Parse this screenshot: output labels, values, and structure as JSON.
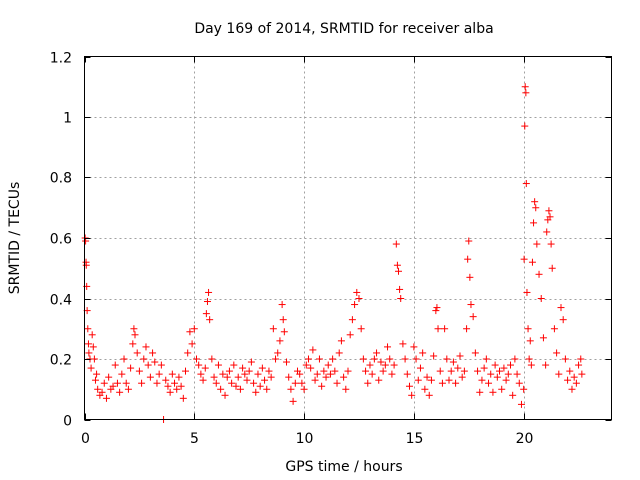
{
  "chart_data": {
    "type": "scatter",
    "title": "Day 169 of 2014, SRMTID for receiver alba",
    "xlabel": "GPS time / hours",
    "ylabel": "SRMTID / TECUs",
    "xlim": [
      0,
      24
    ],
    "ylim": [
      0,
      1.2
    ],
    "xticks": [
      0,
      5,
      10,
      15,
      20
    ],
    "xtick_labels": [
      "0",
      "5",
      "10",
      "15",
      "20"
    ],
    "yticks": [
      0,
      0.2,
      0.4,
      0.6,
      0.8,
      1.0,
      1.2
    ],
    "ytick_labels": [
      "0",
      "0.2",
      "0.4",
      "0.6",
      "0.8",
      "1",
      "1.2"
    ],
    "grid": true,
    "marker": "+",
    "color": "#ff0000",
    "series": [
      {
        "name": "SRMTID",
        "points": [
          [
            0.03,
            0.6
          ],
          [
            0.05,
            0.59
          ],
          [
            0.07,
            0.52
          ],
          [
            0.08,
            0.51
          ],
          [
            0.1,
            0.44
          ],
          [
            0.12,
            0.36
          ],
          [
            0.15,
            0.3
          ],
          [
            0.18,
            0.25
          ],
          [
            0.2,
            0.22
          ],
          [
            0.25,
            0.2
          ],
          [
            0.3,
            0.17
          ],
          [
            0.35,
            0.28
          ],
          [
            0.4,
            0.24
          ],
          [
            0.45,
            0.2
          ],
          [
            0.5,
            0.13
          ],
          [
            0.55,
            0.15
          ],
          [
            0.6,
            0.1
          ],
          [
            0.7,
            0.08
          ],
          [
            0.8,
            0.09
          ],
          [
            0.9,
            0.12
          ],
          [
            1.0,
            0.07
          ],
          [
            1.1,
            0.14
          ],
          [
            1.2,
            0.1
          ],
          [
            1.3,
            0.11
          ],
          [
            1.4,
            0.18
          ],
          [
            1.5,
            0.12
          ],
          [
            1.6,
            0.09
          ],
          [
            1.7,
            0.15
          ],
          [
            1.8,
            0.2
          ],
          [
            1.9,
            0.12
          ],
          [
            2.0,
            0.1
          ],
          [
            2.1,
            0.17
          ],
          [
            2.2,
            0.25
          ],
          [
            2.25,
            0.3
          ],
          [
            2.3,
            0.28
          ],
          [
            2.4,
            0.22
          ],
          [
            2.5,
            0.16
          ],
          [
            2.6,
            0.12
          ],
          [
            2.7,
            0.2
          ],
          [
            2.8,
            0.24
          ],
          [
            2.9,
            0.18
          ],
          [
            3.0,
            0.14
          ],
          [
            3.1,
            0.22
          ],
          [
            3.2,
            0.19
          ],
          [
            3.3,
            0.12
          ],
          [
            3.4,
            0.15
          ],
          [
            3.5,
            0.18
          ],
          [
            3.6,
            0.0
          ],
          [
            3.7,
            0.13
          ],
          [
            3.8,
            0.11
          ],
          [
            3.9,
            0.09
          ],
          [
            4.0,
            0.15
          ],
          [
            4.1,
            0.12
          ],
          [
            4.2,
            0.1
          ],
          [
            4.3,
            0.14
          ],
          [
            4.4,
            0.11
          ],
          [
            4.5,
            0.07
          ],
          [
            4.6,
            0.16
          ],
          [
            4.7,
            0.22
          ],
          [
            4.8,
            0.29
          ],
          [
            4.9,
            0.25
          ],
          [
            5.0,
            0.3
          ],
          [
            5.1,
            0.2
          ],
          [
            5.2,
            0.18
          ],
          [
            5.3,
            0.15
          ],
          [
            5.4,
            0.13
          ],
          [
            5.5,
            0.17
          ],
          [
            5.55,
            0.35
          ],
          [
            5.6,
            0.39
          ],
          [
            5.65,
            0.42
          ],
          [
            5.7,
            0.33
          ],
          [
            5.8,
            0.2
          ],
          [
            5.9,
            0.14
          ],
          [
            6.0,
            0.12
          ],
          [
            6.1,
            0.18
          ],
          [
            6.2,
            0.1
          ],
          [
            6.3,
            0.15
          ],
          [
            6.4,
            0.08
          ],
          [
            6.5,
            0.14
          ],
          [
            6.6,
            0.16
          ],
          [
            6.7,
            0.12
          ],
          [
            6.8,
            0.18
          ],
          [
            6.9,
            0.11
          ],
          [
            7.0,
            0.14
          ],
          [
            7.1,
            0.1
          ],
          [
            7.2,
            0.17
          ],
          [
            7.3,
            0.15
          ],
          [
            7.4,
            0.13
          ],
          [
            7.5,
            0.16
          ],
          [
            7.6,
            0.19
          ],
          [
            7.7,
            0.12
          ],
          [
            7.8,
            0.09
          ],
          [
            7.9,
            0.15
          ],
          [
            8.0,
            0.11
          ],
          [
            8.1,
            0.17
          ],
          [
            8.2,
            0.13
          ],
          [
            8.3,
            0.1
          ],
          [
            8.4,
            0.16
          ],
          [
            8.5,
            0.14
          ],
          [
            8.6,
            0.3
          ],
          [
            8.7,
            0.2
          ],
          [
            8.8,
            0.22
          ],
          [
            8.9,
            0.26
          ],
          [
            9.0,
            0.38
          ],
          [
            9.05,
            0.33
          ],
          [
            9.1,
            0.29
          ],
          [
            9.2,
            0.19
          ],
          [
            9.3,
            0.14
          ],
          [
            9.4,
            0.1
          ],
          [
            9.5,
            0.06
          ],
          [
            9.6,
            0.12
          ],
          [
            9.7,
            0.16
          ],
          [
            9.8,
            0.15
          ],
          [
            9.9,
            0.12
          ],
          [
            10.0,
            0.1
          ],
          [
            10.1,
            0.18
          ],
          [
            10.2,
            0.2
          ],
          [
            10.3,
            0.17
          ],
          [
            10.4,
            0.23
          ],
          [
            10.5,
            0.13
          ],
          [
            10.6,
            0.15
          ],
          [
            10.7,
            0.2
          ],
          [
            10.8,
            0.11
          ],
          [
            10.9,
            0.16
          ],
          [
            11.0,
            0.14
          ],
          [
            11.1,
            0.18
          ],
          [
            11.2,
            0.15
          ],
          [
            11.3,
            0.2
          ],
          [
            11.4,
            0.16
          ],
          [
            11.5,
            0.12
          ],
          [
            11.6,
            0.22
          ],
          [
            11.7,
            0.26
          ],
          [
            11.8,
            0.14
          ],
          [
            11.9,
            0.1
          ],
          [
            12.0,
            0.16
          ],
          [
            12.1,
            0.28
          ],
          [
            12.2,
            0.33
          ],
          [
            12.3,
            0.38
          ],
          [
            12.4,
            0.42
          ],
          [
            12.5,
            0.4
          ],
          [
            12.6,
            0.3
          ],
          [
            12.7,
            0.2
          ],
          [
            12.8,
            0.16
          ],
          [
            12.9,
            0.12
          ],
          [
            13.0,
            0.18
          ],
          [
            13.1,
            0.15
          ],
          [
            13.2,
            0.2
          ],
          [
            13.3,
            0.22
          ],
          [
            13.4,
            0.13
          ],
          [
            13.5,
            0.19
          ],
          [
            13.6,
            0.16
          ],
          [
            13.7,
            0.18
          ],
          [
            13.8,
            0.24
          ],
          [
            13.9,
            0.2
          ],
          [
            14.0,
            0.15
          ],
          [
            14.1,
            0.18
          ],
          [
            14.2,
            0.58
          ],
          [
            14.25,
            0.51
          ],
          [
            14.3,
            0.49
          ],
          [
            14.35,
            0.43
          ],
          [
            14.4,
            0.4
          ],
          [
            14.5,
            0.25
          ],
          [
            14.6,
            0.2
          ],
          [
            14.7,
            0.15
          ],
          [
            14.8,
            0.11
          ],
          [
            14.9,
            0.08
          ],
          [
            15.0,
            0.24
          ],
          [
            15.1,
            0.2
          ],
          [
            15.2,
            0.13
          ],
          [
            15.3,
            0.17
          ],
          [
            15.4,
            0.22
          ],
          [
            15.5,
            0.1
          ],
          [
            15.6,
            0.14
          ],
          [
            15.7,
            0.08
          ],
          [
            15.8,
            0.13
          ],
          [
            15.9,
            0.21
          ],
          [
            16.0,
            0.36
          ],
          [
            16.05,
            0.37
          ],
          [
            16.1,
            0.3
          ],
          [
            16.2,
            0.16
          ],
          [
            16.3,
            0.12
          ],
          [
            16.4,
            0.3
          ],
          [
            16.5,
            0.2
          ],
          [
            16.6,
            0.13
          ],
          [
            16.7,
            0.16
          ],
          [
            16.8,
            0.19
          ],
          [
            16.9,
            0.12
          ],
          [
            17.0,
            0.17
          ],
          [
            17.1,
            0.21
          ],
          [
            17.2,
            0.14
          ],
          [
            17.3,
            0.16
          ],
          [
            17.4,
            0.3
          ],
          [
            17.45,
            0.53
          ],
          [
            17.5,
            0.59
          ],
          [
            17.55,
            0.47
          ],
          [
            17.6,
            0.38
          ],
          [
            17.7,
            0.34
          ],
          [
            17.8,
            0.22
          ],
          [
            17.9,
            0.16
          ],
          [
            18.0,
            0.09
          ],
          [
            18.1,
            0.13
          ],
          [
            18.2,
            0.17
          ],
          [
            18.3,
            0.2
          ],
          [
            18.4,
            0.12
          ],
          [
            18.5,
            0.15
          ],
          [
            18.6,
            0.09
          ],
          [
            18.7,
            0.18
          ],
          [
            18.8,
            0.14
          ],
          [
            18.9,
            0.16
          ],
          [
            19.0,
            0.1
          ],
          [
            19.1,
            0.17
          ],
          [
            19.2,
            0.13
          ],
          [
            19.3,
            0.15
          ],
          [
            19.4,
            0.18
          ],
          [
            19.5,
            0.08
          ],
          [
            19.6,
            0.2
          ],
          [
            19.7,
            0.15
          ],
          [
            19.8,
            0.12
          ],
          [
            19.9,
            0.05
          ],
          [
            20.0,
            0.1
          ],
          [
            20.02,
            0.53
          ],
          [
            20.05,
            0.97
          ],
          [
            20.07,
            1.1
          ],
          [
            20.1,
            1.08
          ],
          [
            20.12,
            0.78
          ],
          [
            20.15,
            0.42
          ],
          [
            20.2,
            0.3
          ],
          [
            20.25,
            0.2
          ],
          [
            20.3,
            0.26
          ],
          [
            20.35,
            0.18
          ],
          [
            20.4,
            0.52
          ],
          [
            20.45,
            0.65
          ],
          [
            20.5,
            0.72
          ],
          [
            20.55,
            0.7
          ],
          [
            20.6,
            0.58
          ],
          [
            20.7,
            0.48
          ],
          [
            20.8,
            0.4
          ],
          [
            20.9,
            0.27
          ],
          [
            21.0,
            0.18
          ],
          [
            21.05,
            0.62
          ],
          [
            21.1,
            0.66
          ],
          [
            21.15,
            0.69
          ],
          [
            21.2,
            0.67
          ],
          [
            21.25,
            0.58
          ],
          [
            21.3,
            0.5
          ],
          [
            21.4,
            0.3
          ],
          [
            21.5,
            0.22
          ],
          [
            21.6,
            0.15
          ],
          [
            21.7,
            0.37
          ],
          [
            21.8,
            0.33
          ],
          [
            21.9,
            0.2
          ],
          [
            22.0,
            0.13
          ],
          [
            22.1,
            0.16
          ],
          [
            22.2,
            0.1
          ],
          [
            22.3,
            0.14
          ],
          [
            22.4,
            0.12
          ],
          [
            22.5,
            0.18
          ],
          [
            22.6,
            0.2
          ],
          [
            22.65,
            0.15
          ]
        ]
      }
    ]
  }
}
